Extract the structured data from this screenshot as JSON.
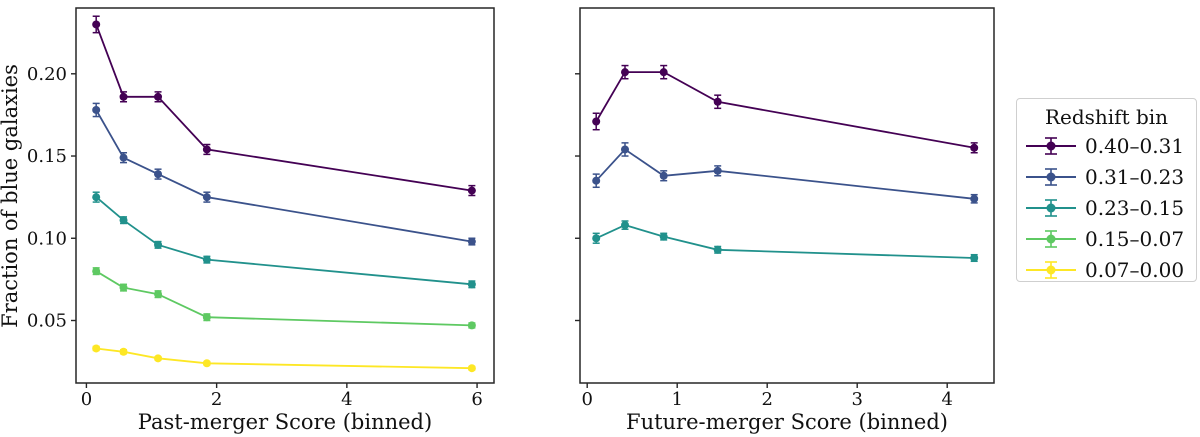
{
  "figure": {
    "background": "#ffffff",
    "spine_color": "#262626",
    "text_color": "#111111"
  },
  "legend": {
    "title": "Redshift bin",
    "position": "outside-right",
    "entries": [
      {
        "label": "0.40–0.31",
        "color": "#440154"
      },
      {
        "label": "0.31–0.23",
        "color": "#3b528b"
      },
      {
        "label": "0.23–0.15",
        "color": "#21918c"
      },
      {
        "label": "0.15–0.07",
        "color": "#5ec962"
      },
      {
        "label": "0.07–0.00",
        "color": "#fde725"
      }
    ]
  },
  "chart_data": [
    {
      "type": "line",
      "title": "",
      "xlabel": "Past-merger Score (binned)",
      "ylabel": "Fraction of blue galaxies",
      "grid": false,
      "xlim": [
        -0.16,
        6.26
      ],
      "ylim": [
        0.012,
        0.24
      ],
      "xticks": [
        0,
        2,
        4,
        6
      ],
      "xtick_labels": [
        "0",
        "2",
        "4",
        "6"
      ],
      "yticks": [
        0.05,
        0.1,
        0.15,
        0.2
      ],
      "ytick_labels": [
        "0.05",
        "0.10",
        "0.15",
        "0.20"
      ],
      "x": [
        0.15,
        0.57,
        1.1,
        1.85,
        5.92
      ],
      "series": [
        {
          "name": "0.40–0.31",
          "color": "#440154",
          "values": [
            0.23,
            0.186,
            0.186,
            0.154,
            0.129
          ],
          "errors": [
            0.005,
            0.003,
            0.003,
            0.003,
            0.003
          ]
        },
        {
          "name": "0.31–0.23",
          "color": "#3b528b",
          "values": [
            0.178,
            0.149,
            0.139,
            0.125,
            0.098
          ],
          "errors": [
            0.004,
            0.003,
            0.003,
            0.003,
            0.002
          ]
        },
        {
          "name": "0.23–0.15",
          "color": "#21918c",
          "values": [
            0.125,
            0.111,
            0.096,
            0.087,
            0.072
          ],
          "errors": [
            0.003,
            0.002,
            0.002,
            0.002,
            0.002
          ]
        },
        {
          "name": "0.15–0.07",
          "color": "#5ec962",
          "values": [
            0.08,
            0.07,
            0.066,
            0.052,
            0.047
          ],
          "errors": [
            0.002,
            0.002,
            0.002,
            0.002,
            0.0015
          ]
        },
        {
          "name": "0.07–0.00",
          "color": "#fde725",
          "values": [
            0.033,
            0.031,
            0.027,
            0.024,
            0.021
          ],
          "errors": [
            0.0012,
            0.0012,
            0.001,
            0.001,
            0.001
          ]
        }
      ]
    },
    {
      "type": "line",
      "title": "",
      "xlabel": "Future-merger Score (binned)",
      "ylabel": "",
      "grid": false,
      "xlim": [
        -0.08,
        4.52
      ],
      "ylim": [
        0.012,
        0.24
      ],
      "xticks": [
        0,
        1,
        2,
        3,
        4
      ],
      "xtick_labels": [
        "0",
        "1",
        "2",
        "3",
        "4"
      ],
      "yticks": [
        0.05,
        0.1,
        0.15,
        0.2
      ],
      "ytick_labels": [
        "",
        "",
        "",
        ""
      ],
      "x": [
        0.1,
        0.42,
        0.85,
        1.45,
        4.3
      ],
      "series": [
        {
          "name": "0.40–0.31",
          "color": "#440154",
          "values": [
            0.171,
            0.201,
            0.201,
            0.183,
            0.155
          ],
          "errors": [
            0.005,
            0.004,
            0.004,
            0.004,
            0.003
          ]
        },
        {
          "name": "0.31–0.23",
          "color": "#3b528b",
          "values": [
            0.135,
            0.154,
            0.138,
            0.141,
            0.124
          ],
          "errors": [
            0.004,
            0.004,
            0.003,
            0.003,
            0.0025
          ]
        },
        {
          "name": "0.23–0.15",
          "color": "#21918c",
          "values": [
            0.1,
            0.108,
            0.101,
            0.093,
            0.088
          ],
          "errors": [
            0.003,
            0.0025,
            0.002,
            0.002,
            0.002
          ]
        }
      ]
    }
  ]
}
